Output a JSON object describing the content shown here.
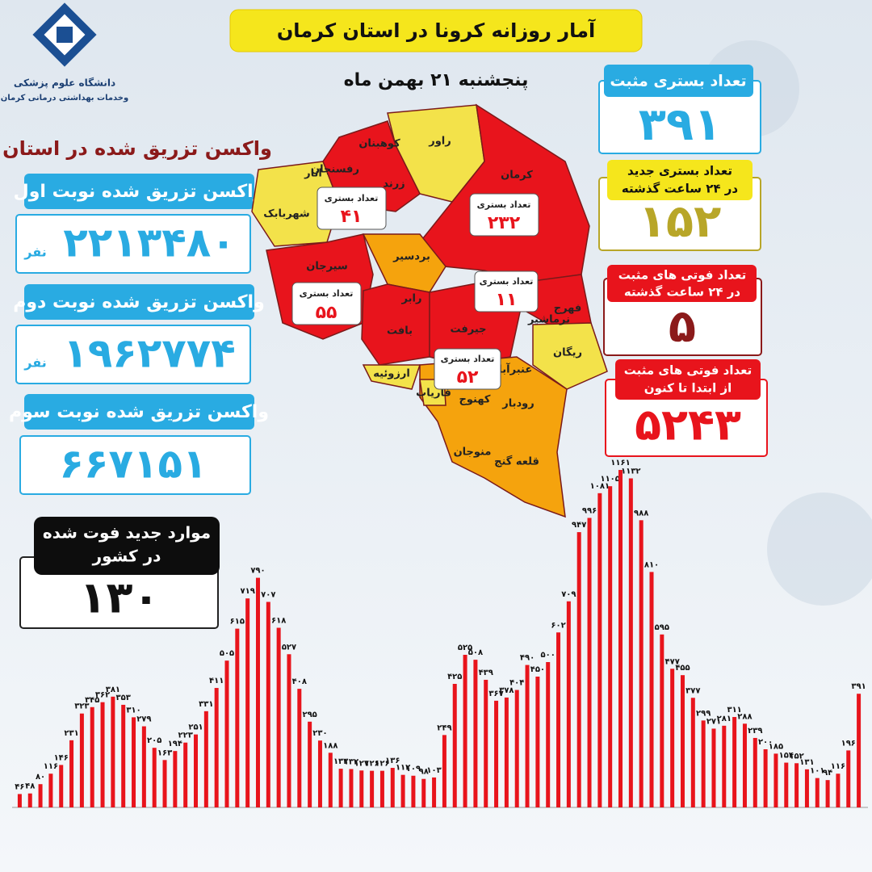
{
  "header": {
    "title": "آمار روزانه کرونا در استان کرمان",
    "date": "پنجشنبه ۲۱ بهمن ماه",
    "org_lines": [
      "دانشگاه علوم پزشکی",
      "وخدمات بهداشتی درمانی کرمان"
    ]
  },
  "vaccination": {
    "heading": "واکسن تزریق شده در استان",
    "doses": [
      {
        "label": "واکسن تزریق شده نوبت اول",
        "value": "۲۲۱۳۴۸۰",
        "unit": "نفر"
      },
      {
        "label": "واکسن تزریق شده نوبت دوم",
        "value": "۱۹۶۲۷۷۴",
        "unit": "نفر"
      },
      {
        "label": "واکسن تزریق شده نوبت سوم",
        "value": "۶۶۷۱۵۱"
      }
    ]
  },
  "country_deaths": {
    "label_lines": [
      "موارد جدید فوت شده",
      "در کشور"
    ],
    "value": "۱۳۰"
  },
  "stats": [
    {
      "label_lines": [
        "تعداد بستری مثبت"
      ],
      "value": "۳۹۱"
    },
    {
      "label_lines": [
        "تعداد بستری جدید",
        "در ۲۴ ساعت گذشته"
      ],
      "value": "۱۵۲"
    },
    {
      "label_lines": [
        "تعداد فوتی های مثبت",
        "در ۲۴ ساعت گذشته"
      ],
      "value": "۵"
    },
    {
      "label_lines": [
        "تعداد فوتی های مثبت",
        "از ابتدا تا کنون"
      ],
      "value": "۵۲۴۳"
    }
  ],
  "map": {
    "districts": [
      "راور",
      "کوهبنان",
      "انار",
      "رفسنجان",
      "زرند",
      "کرمان",
      "شهربابک",
      "بردسیر",
      "سیرجان",
      "رابر",
      "بم",
      "فهرج",
      "بافت",
      "جیرفت",
      "ریگان",
      "ارزوئیه",
      "عنبرآباد",
      "رودبار",
      "قلعه گنج",
      "منوجان",
      "کهنوج",
      "فاریاب",
      "نرماشیر"
    ],
    "callouts": [
      {
        "label": "تعداد بستری",
        "value": "۴۱"
      },
      {
        "label": "تعداد بستری",
        "value": "۲۳۲"
      },
      {
        "label": "تعداد بستری",
        "value": "۵۵"
      },
      {
        "label": "تعداد بستری",
        "value": "۱۱"
      },
      {
        "label": "تعداد بستری",
        "value": "۵۲"
      }
    ]
  },
  "chart_data": {
    "type": "bar",
    "color": "#e8141c",
    "categories": [
      null,
      null,
      null,
      null,
      null,
      null,
      null,
      null,
      null,
      null,
      null,
      null,
      null,
      null,
      null,
      null,
      null,
      null,
      null,
      null,
      null,
      null,
      null,
      null,
      null,
      null,
      null,
      null,
      null,
      null,
      null,
      null,
      null,
      null,
      null,
      null,
      null,
      null,
      null,
      null,
      null,
      null,
      null,
      null,
      null,
      null,
      null,
      null,
      null,
      null,
      null,
      null,
      null,
      null,
      null,
      null,
      null,
      null,
      null,
      null,
      null,
      null,
      null,
      null,
      null,
      null,
      null,
      null,
      null,
      null,
      null,
      null,
      null,
      null,
      null,
      null,
      null,
      null,
      null,
      null,
      null,
      null
    ],
    "values": [
      46,
      48,
      80,
      116,
      146,
      231,
      323,
      345,
      362,
      381,
      353,
      310,
      279,
      205,
      163,
      194,
      223,
      251,
      331,
      411,
      505,
      615,
      719,
      790,
      707,
      618,
      527,
      408,
      295,
      230,
      188,
      133,
      132,
      127,
      126,
      126,
      136,
      112,
      109,
      98,
      103,
      249,
      425,
      525,
      508,
      439,
      367,
      378,
      404,
      490,
      450,
      500,
      602,
      709,
      947,
      996,
      1081,
      1105,
      1161,
      1132,
      988,
      810,
      595,
      477,
      455,
      377,
      299,
      271,
      281,
      311,
      288,
      239,
      200,
      185,
      154,
      152,
      131,
      101,
      94,
      116,
      196,
      391
    ],
    "value_labels": [
      "۴۶",
      "۴۸",
      "۸۰",
      "۱۱۶",
      "۱۴۶",
      "۲۳۱",
      "۳۲۳",
      "۳۴۵",
      "۳۶۲",
      "۳۸۱",
      "۳۵۳",
      "۳۱۰",
      "۲۷۹",
      "۲۰۵",
      "۱۶۳",
      "۱۹۴",
      "۲۲۳",
      "۲۵۱",
      "۳۳۱",
      "۴۱۱",
      "۵۰۵",
      "۶۱۵",
      "۷۱۹",
      "۷۹۰",
      "۷۰۷",
      "۶۱۸",
      "۵۲۷",
      "۴۰۸",
      "۲۹۵",
      "۲۳۰",
      "۱۸۸",
      "۱۳۳",
      "۱۳۲",
      "۱۲۷",
      "۱۲۶",
      "۱۲۶",
      "۱۳۶",
      "۱۱۲",
      "۱۰۹",
      "۹۸",
      "۱۰۳",
      "۲۴۹",
      "۴۲۵",
      "۵۲۵",
      "۵۰۸",
      "۴۳۹",
      "۳۶۷",
      "۳۷۸",
      "۴۰۴",
      "۴۹۰",
      "۴۵۰",
      "۵۰۰",
      "۶۰۲",
      "۷۰۹",
      "۹۴۷",
      "۹۹۶",
      "۱۰۸۱",
      "۱۱۰۵",
      "۱۱۶۱",
      "۱۱۳۲",
      "۹۸۸",
      "۸۱۰",
      "۵۹۵",
      "۴۷۷",
      "۴۵۵",
      "۳۷۷",
      "۲۹۹",
      "۲۷۱",
      "۲۸۱",
      "۳۱۱",
      "۲۸۸",
      "۲۳۹",
      "۲۰۰",
      "۱۸۵",
      "۱۵۴",
      "۱۵۲",
      "۱۳۱",
      "۱۰۱",
      "۹۴",
      "۱۱۶",
      "۱۹۶",
      "۳۹۱"
    ]
  }
}
